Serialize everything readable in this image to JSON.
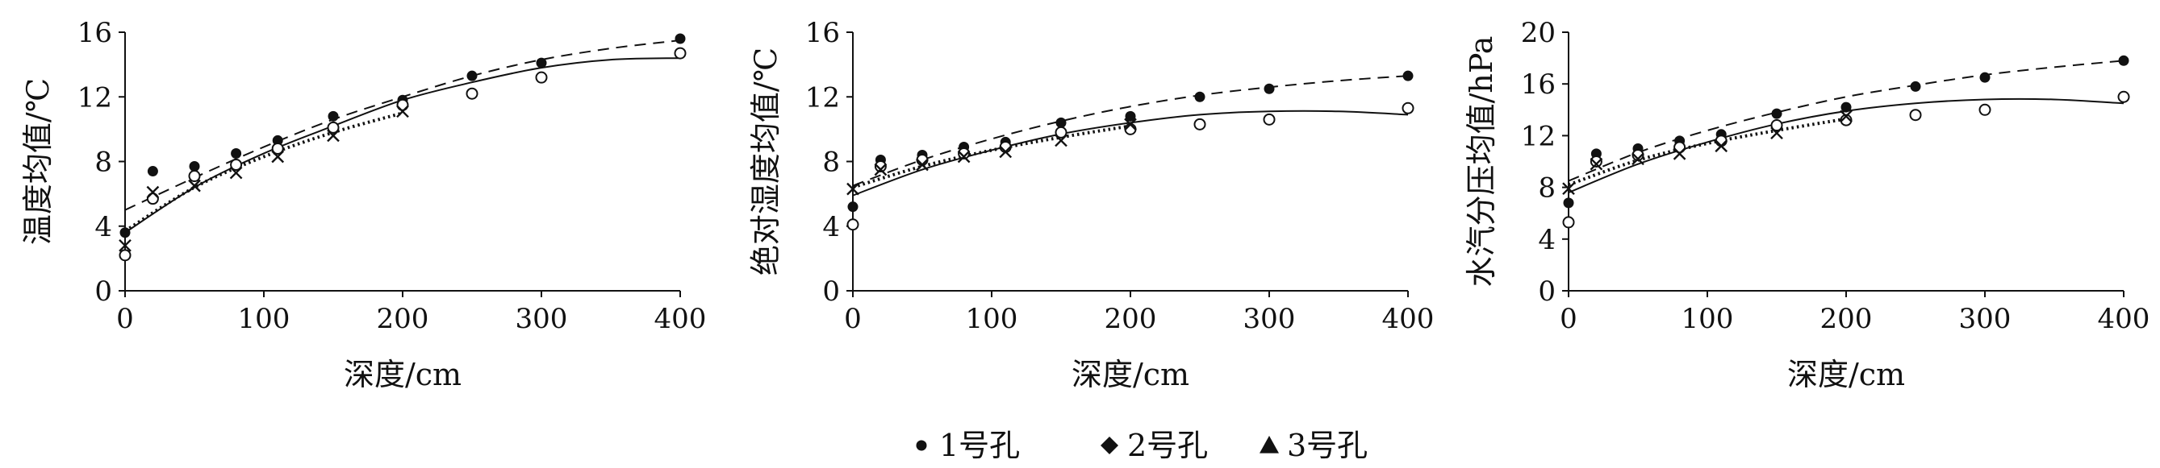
{
  "chart_data": [
    {
      "type": "scatter",
      "xlabel": "深度/cm",
      "ylabel": "温度均值/℃",
      "xlim": [
        0,
        400
      ],
      "ylim": [
        0,
        16
      ],
      "xticks": [
        "0",
        "100",
        "200",
        "300",
        "400"
      ],
      "yticks": [
        "0",
        "4",
        "8",
        "12",
        "16"
      ],
      "grid": false,
      "series": [
        {
          "marker": "filled-circle",
          "x": [
            0,
            20,
            50,
            80,
            110,
            150,
            200,
            250,
            300,
            400
          ],
          "y": [
            3.6,
            7.4,
            7.7,
            8.5,
            9.3,
            10.8,
            11.8,
            13.3,
            14.1,
            15.6
          ]
        },
        {
          "marker": "open-circle",
          "x": [
            0,
            20,
            50,
            80,
            110,
            150,
            200,
            250,
            300,
            400
          ],
          "y": [
            2.2,
            5.7,
            7.1,
            7.8,
            8.8,
            10.1,
            11.5,
            12.2,
            13.2,
            14.7
          ]
        },
        {
          "marker": "cross",
          "x": [
            0,
            20,
            50,
            80,
            110,
            150,
            200
          ],
          "y": [
            2.8,
            6.1,
            6.5,
            7.3,
            8.3,
            9.6,
            11.1
          ]
        }
      ],
      "trendlines": [
        {
          "style": "dashed",
          "x": [
            0,
            50,
            100,
            150,
            200,
            250,
            300,
            350,
            400
          ],
          "y": [
            5.0,
            7.0,
            8.9,
            10.6,
            12.0,
            13.3,
            14.3,
            15.0,
            15.5
          ]
        },
        {
          "style": "solid",
          "x": [
            0,
            50,
            100,
            150,
            200,
            250,
            300,
            350,
            400
          ],
          "y": [
            3.6,
            6.4,
            8.5,
            10.2,
            11.8,
            12.9,
            13.8,
            14.3,
            14.4
          ]
        },
        {
          "style": "dotted",
          "x": [
            0,
            50,
            100,
            150,
            200
          ],
          "y": [
            3.7,
            6.4,
            8.3,
            9.8,
            11.0
          ]
        }
      ]
    },
    {
      "type": "scatter",
      "xlabel": "深度/cm",
      "ylabel": "绝对湿度均值/℃",
      "xlim": [
        0,
        400
      ],
      "ylim": [
        0,
        16
      ],
      "xticks": [
        "0",
        "100",
        "200",
        "300",
        "400"
      ],
      "yticks": [
        "0",
        "4",
        "8",
        "12",
        "16"
      ],
      "grid": false,
      "series": [
        {
          "marker": "filled-circle",
          "x": [
            0,
            20,
            50,
            80,
            110,
            150,
            200,
            250,
            300,
            400
          ],
          "y": [
            5.2,
            8.1,
            8.4,
            8.9,
            9.2,
            10.4,
            10.8,
            12.0,
            12.5,
            13.3
          ]
        },
        {
          "marker": "open-circle",
          "x": [
            0,
            20,
            50,
            80,
            110,
            150,
            200,
            250,
            300,
            400
          ],
          "y": [
            4.1,
            7.7,
            8.1,
            8.5,
            8.9,
            9.8,
            10.0,
            10.3,
            10.6,
            11.3
          ]
        },
        {
          "marker": "cross",
          "x": [
            0,
            20,
            50,
            80,
            110,
            150,
            200
          ],
          "y": [
            6.3,
            7.5,
            7.8,
            8.3,
            8.6,
            9.3,
            10.3
          ]
        }
      ],
      "trendlines": [
        {
          "style": "dashed",
          "x": [
            0,
            50,
            100,
            150,
            200,
            250,
            300,
            350,
            400
          ],
          "y": [
            6.5,
            8.1,
            9.4,
            10.5,
            11.4,
            12.1,
            12.6,
            13.0,
            13.3
          ]
        },
        {
          "style": "solid",
          "x": [
            0,
            50,
            100,
            150,
            200,
            250,
            300,
            350,
            400
          ],
          "y": [
            5.9,
            7.5,
            8.7,
            9.7,
            10.4,
            10.9,
            11.1,
            11.1,
            10.9
          ]
        },
        {
          "style": "dotted",
          "x": [
            0,
            50,
            100,
            150,
            200
          ],
          "y": [
            6.4,
            7.7,
            8.7,
            9.5,
            10.2
          ]
        }
      ]
    },
    {
      "type": "scatter",
      "xlabel": "深度/cm",
      "ylabel": "水汽分压均值/hPa",
      "xlim": [
        0,
        400
      ],
      "ylim": [
        0,
        20
      ],
      "xticks": [
        "0",
        "100",
        "200",
        "300",
        "400"
      ],
      "yticks": [
        "0",
        "4",
        "8",
        "12",
        "16",
        "20"
      ],
      "grid": false,
      "series": [
        {
          "marker": "filled-circle",
          "x": [
            0,
            20,
            50,
            80,
            110,
            150,
            200,
            250,
            300,
            400
          ],
          "y": [
            6.8,
            10.6,
            11.0,
            11.6,
            12.1,
            13.7,
            14.2,
            15.8,
            16.5,
            17.8
          ]
        },
        {
          "marker": "open-circle",
          "x": [
            0,
            20,
            50,
            80,
            110,
            150,
            200,
            250,
            300,
            400
          ],
          "y": [
            5.3,
            10.0,
            10.5,
            11.1,
            11.6,
            12.8,
            13.2,
            13.6,
            14.0,
            15.0
          ]
        },
        {
          "marker": "cross",
          "x": [
            0,
            20,
            50,
            80,
            110,
            150,
            200
          ],
          "y": [
            7.9,
            9.8,
            10.2,
            10.6,
            11.2,
            12.2,
            13.5
          ]
        }
      ],
      "trendlines": [
        {
          "style": "dashed",
          "x": [
            0,
            50,
            100,
            150,
            200,
            250,
            300,
            350,
            400
          ],
          "y": [
            8.5,
            10.7,
            12.4,
            13.8,
            15.0,
            15.9,
            16.7,
            17.3,
            17.8
          ]
        },
        {
          "style": "solid",
          "x": [
            0,
            50,
            100,
            150,
            200,
            250,
            300,
            350,
            400
          ],
          "y": [
            7.6,
            9.8,
            11.5,
            12.9,
            13.9,
            14.5,
            14.8,
            14.8,
            14.5
          ]
        },
        {
          "style": "dotted",
          "x": [
            0,
            50,
            100,
            150,
            200
          ],
          "y": [
            8.2,
            10.1,
            11.4,
            12.4,
            13.3
          ]
        }
      ]
    }
  ],
  "legend": {
    "placement": "bottom-center",
    "items": [
      {
        "marker": "filled-circle",
        "label": "1号孔"
      },
      {
        "marker": "filled-diamond",
        "label": "2号孔"
      },
      {
        "marker": "filled-triangle",
        "label": "3号孔"
      }
    ]
  },
  "colors": {
    "ink": "#111111",
    "background": "#ffffff"
  }
}
